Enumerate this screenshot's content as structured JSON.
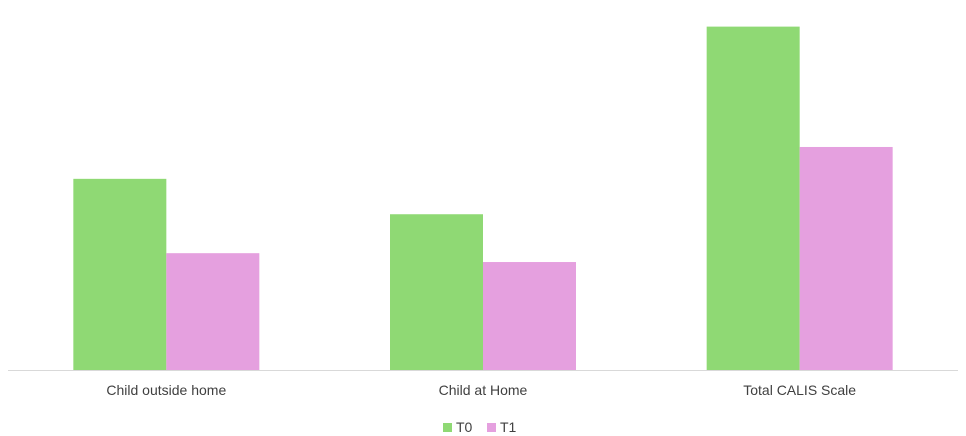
{
  "chart_data": {
    "type": "bar",
    "categories": [
      "Child outside home",
      "Child at Home",
      "Total CALIS Scale"
    ],
    "series": [
      {
        "name": "T0",
        "color": "#8fd974",
        "values": [
          5.4,
          4.4,
          9.7
        ]
      },
      {
        "name": "T1",
        "color": "#e5a0df",
        "values": [
          3.3,
          3.05,
          6.3
        ]
      }
    ],
    "title": "",
    "xlabel": "",
    "ylabel": "",
    "ylim": [
      0,
      10
    ],
    "grid": false,
    "legend": "bottom-center"
  }
}
